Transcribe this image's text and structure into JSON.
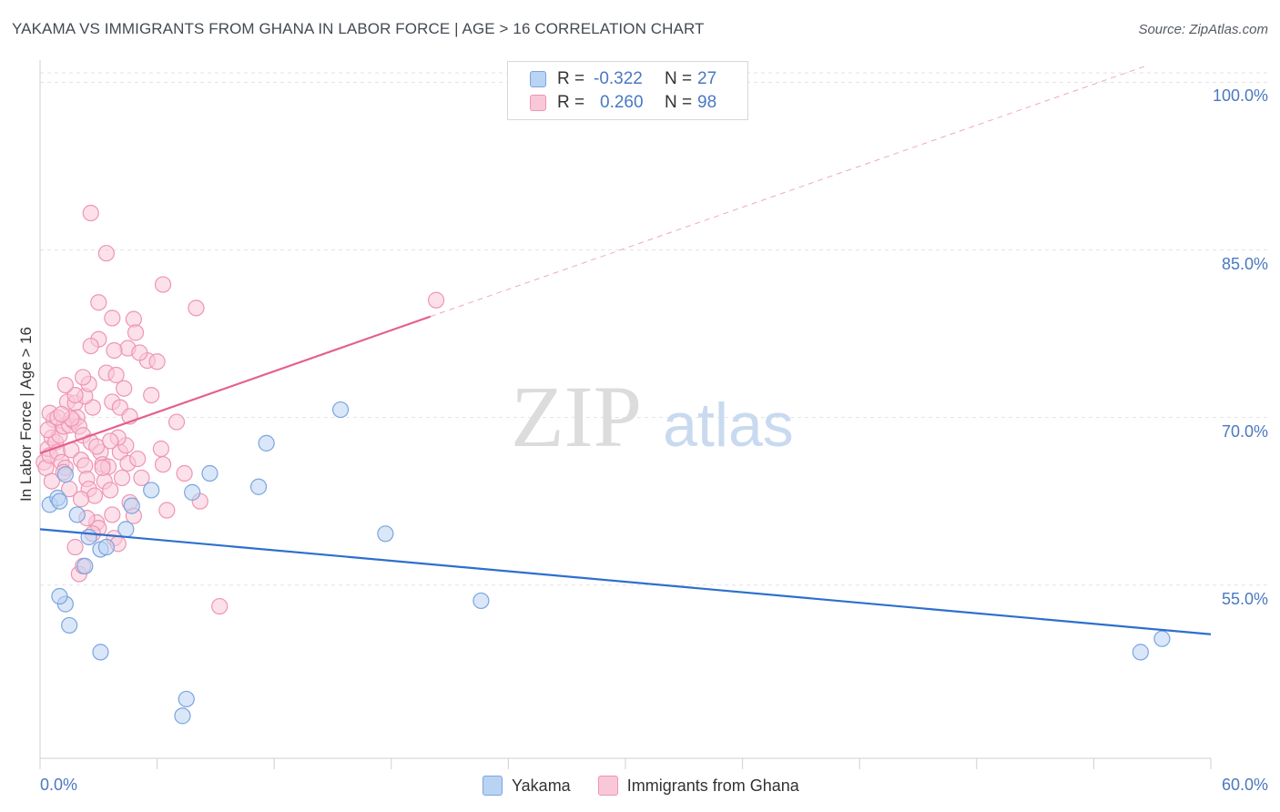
{
  "chart_data": {
    "type": "scatter",
    "title": "YAKAMA VS IMMIGRANTS FROM GHANA IN LABOR FORCE | AGE > 16 CORRELATION CHART",
    "source": "Source: ZipAtlas.com",
    "ylabel": "In Labor Force | Age > 16",
    "xlabel": "",
    "xlim": [
      0,
      60
    ],
    "ylim": [
      39.5,
      101.5
    ],
    "x_tick_labels": [
      "0.0%",
      "60.0%"
    ],
    "y_ticks": [
      55,
      70,
      85,
      100
    ],
    "y_tick_labels": [
      "55.0%",
      "70.0%",
      "85.0%",
      "100.0%"
    ],
    "grid": true,
    "watermark": {
      "zip": "ZIP",
      "atlas": "atlas"
    },
    "legend": {
      "r_label": "R =",
      "n_label": "N =",
      "entries": [
        {
          "name": "Yakama",
          "r": "-0.322",
          "n": "27",
          "fill": "#b9d3f3",
          "stroke": "#7aa5df"
        },
        {
          "name": "Immigrants from Ghana",
          "r": "0.260",
          "n": "98",
          "fill": "#f9c8d8",
          "stroke": "#ee95b2"
        }
      ]
    },
    "series": [
      {
        "name": "Yakama",
        "color": "#7aa5df",
        "fill": "#b9d3f3",
        "line_color": "#2d6fce",
        "trend": {
          "x0": 0,
          "y0": 60.0,
          "x1": 60,
          "y1": 50.6,
          "solid_to": 60
        },
        "points": [
          [
            0.5,
            62.2
          ],
          [
            0.9,
            62.8
          ],
          [
            1.0,
            62.5
          ],
          [
            1.3,
            64.9
          ],
          [
            1.9,
            61.3
          ],
          [
            2.5,
            59.3
          ],
          [
            3.1,
            58.2
          ],
          [
            3.4,
            58.4
          ],
          [
            2.3,
            56.7
          ],
          [
            4.4,
            60.0
          ],
          [
            4.7,
            62.1
          ],
          [
            5.7,
            63.5
          ],
          [
            7.8,
            63.3
          ],
          [
            8.7,
            65.0
          ],
          [
            11.2,
            63.8
          ],
          [
            11.6,
            67.7
          ],
          [
            15.4,
            70.7
          ],
          [
            17.7,
            59.6
          ],
          [
            22.6,
            53.6
          ],
          [
            1.3,
            53.3
          ],
          [
            1.5,
            51.4
          ],
          [
            3.1,
            49.0
          ],
          [
            7.5,
            44.8
          ],
          [
            7.3,
            43.3
          ],
          [
            56.4,
            49.0
          ],
          [
            57.5,
            50.2
          ],
          [
            1.0,
            54.0
          ]
        ]
      },
      {
        "name": "Immigrants from Ghana",
        "color": "#ee95b2",
        "fill": "#f9c8d8",
        "line_color": "#e4608c",
        "trend": {
          "x0": 0,
          "y0": 66.8,
          "x1": 60,
          "y1": 103.5,
          "solid_to": 20
        },
        "points": [
          [
            0.2,
            66.0
          ],
          [
            0.3,
            65.5
          ],
          [
            0.4,
            67.2
          ],
          [
            0.5,
            66.6
          ],
          [
            0.6,
            64.3
          ],
          [
            0.6,
            68.2
          ],
          [
            0.7,
            69.8
          ],
          [
            0.8,
            67.8
          ],
          [
            0.9,
            66.9
          ],
          [
            1.0,
            68.4
          ],
          [
            1.1,
            66.0
          ],
          [
            1.2,
            69.2
          ],
          [
            1.3,
            65.5
          ],
          [
            1.4,
            71.4
          ],
          [
            1.5,
            69.3
          ],
          [
            1.6,
            67.1
          ],
          [
            1.7,
            69.7
          ],
          [
            1.8,
            71.3
          ],
          [
            1.9,
            70.0
          ],
          [
            2.0,
            69.2
          ],
          [
            2.1,
            66.2
          ],
          [
            2.2,
            68.4
          ],
          [
            2.3,
            65.7
          ],
          [
            2.4,
            64.5
          ],
          [
            2.5,
            63.6
          ],
          [
            2.6,
            67.8
          ],
          [
            2.7,
            70.9
          ],
          [
            2.8,
            63.0
          ],
          [
            2.9,
            60.6
          ],
          [
            3.0,
            60.1
          ],
          [
            3.1,
            66.9
          ],
          [
            3.2,
            65.8
          ],
          [
            3.3,
            64.3
          ],
          [
            3.5,
            65.6
          ],
          [
            3.6,
            63.5
          ],
          [
            3.7,
            61.3
          ],
          [
            3.8,
            59.2
          ],
          [
            4.0,
            58.7
          ],
          [
            4.1,
            66.9
          ],
          [
            4.2,
            64.6
          ],
          [
            4.4,
            67.5
          ],
          [
            4.5,
            65.9
          ],
          [
            4.6,
            62.4
          ],
          [
            4.8,
            61.2
          ],
          [
            5.0,
            66.3
          ],
          [
            5.2,
            64.6
          ],
          [
            5.5,
            75.1
          ],
          [
            5.7,
            72.0
          ],
          [
            6.0,
            75.0
          ],
          [
            6.2,
            67.2
          ],
          [
            6.3,
            65.8
          ],
          [
            6.5,
            61.7
          ],
          [
            7.0,
            69.6
          ],
          [
            7.4,
            65.0
          ],
          [
            8.0,
            79.8
          ],
          [
            8.2,
            62.5
          ],
          [
            4.5,
            76.2
          ],
          [
            4.8,
            78.8
          ],
          [
            3.0,
            77.0
          ],
          [
            3.8,
            76.0
          ],
          [
            3.0,
            80.3
          ],
          [
            2.6,
            76.4
          ],
          [
            2.3,
            71.9
          ],
          [
            2.5,
            73.0
          ],
          [
            3.4,
            74.0
          ],
          [
            3.9,
            73.8
          ],
          [
            4.3,
            72.6
          ],
          [
            1.8,
            72.0
          ],
          [
            2.2,
            73.6
          ],
          [
            3.7,
            71.4
          ],
          [
            4.1,
            70.9
          ],
          [
            4.6,
            70.1
          ],
          [
            2.6,
            88.3
          ],
          [
            3.4,
            84.7
          ],
          [
            6.3,
            81.9
          ],
          [
            3.7,
            78.9
          ],
          [
            4.9,
            77.6
          ],
          [
            1.2,
            65.1
          ],
          [
            1.5,
            63.6
          ],
          [
            2.1,
            62.7
          ],
          [
            2.4,
            61.0
          ],
          [
            2.7,
            59.6
          ],
          [
            2.0,
            56.0
          ],
          [
            2.2,
            56.7
          ],
          [
            9.2,
            53.1
          ],
          [
            1.8,
            58.4
          ],
          [
            20.3,
            80.5
          ],
          [
            0.5,
            70.4
          ],
          [
            0.9,
            70.0
          ],
          [
            1.3,
            72.9
          ],
          [
            1.6,
            69.9
          ],
          [
            2.9,
            67.4
          ],
          [
            4.0,
            68.2
          ],
          [
            3.2,
            65.5
          ],
          [
            0.4,
            68.9
          ],
          [
            1.1,
            70.3
          ],
          [
            5.1,
            75.8
          ],
          [
            3.6,
            67.9
          ]
        ]
      }
    ]
  }
}
